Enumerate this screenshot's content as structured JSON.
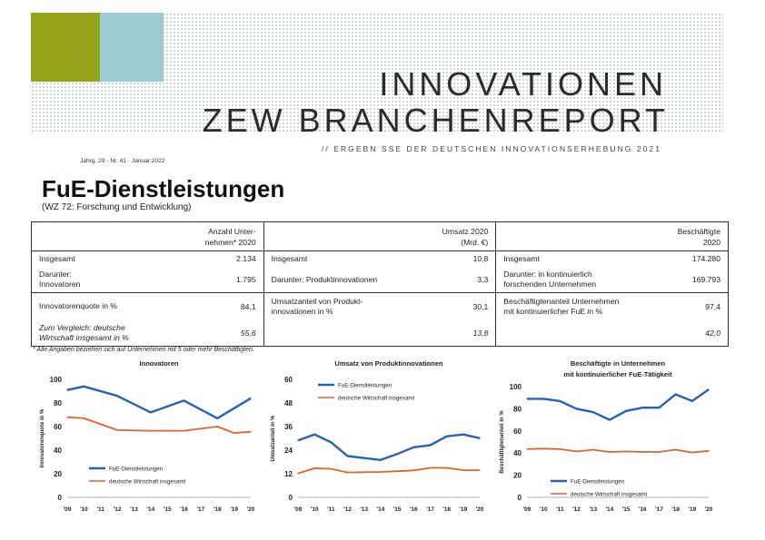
{
  "header": {
    "title_line1": "INNOVATIONEN",
    "title_line2": "ZEW BRANCHENREPORT",
    "subtitle": "// ERGEBN SSE DER DEUTSCHEN INNOVATIONSERHEBUNG 2021",
    "issue": "Jahrg. 29 · Nr. 41 · Januar 2022",
    "colors": {
      "green": "#94a317",
      "blue": "#9ecad2",
      "series_main": "#2563b0",
      "series_compare": "#e0622c"
    }
  },
  "report": {
    "title": "FuE-Dienstleistungen",
    "subtitle": "(WZ 72: Forschung und Entwicklung)"
  },
  "table": {
    "headers": [
      "Anzahl Unter-\nnehmen* 2020",
      "Umsatz 2020\n(Mrd. €)",
      "Beschäftigte\n2020"
    ],
    "rows": [
      [
        {
          "label": "Insgesamt",
          "value": "2.134"
        },
        {
          "label": "Insgesamt",
          "value": "10,8"
        },
        {
          "label": "Insgesamt",
          "value": "174.280"
        }
      ],
      [
        {
          "label": "Darunter:\nInnovatoren",
          "value": "1.795"
        },
        {
          "label": "Darunter: Produktinnovationen",
          "value": "3,3"
        },
        {
          "label": "Darunter: in kontinuierlich\nforschenden Unternehmen",
          "value": "169.793"
        }
      ],
      [
        {
          "label": "Innovatorenquote in %",
          "value": "84,1"
        },
        {
          "label": "Umsatzanteil von Produkt-\ninnovationen in %",
          "value": "30,1"
        },
        {
          "label": "Beschäftigtenanteil Unternehmen\nmit kontinuierlicher FuE in %",
          "value": "97,4"
        }
      ],
      [
        {
          "label": "Zum Vergleich: deutsche\nWirtschaft insgesamt in %",
          "value": "55,6"
        },
        {
          "label": "",
          "value": "13,8"
        },
        {
          "label": "",
          "value": "42,0"
        }
      ]
    ]
  },
  "footnote": "* Alle Angaben beziehen sich auf Unternehmen mit 5 oder mehr Beschäftigten.",
  "chart_data": [
    {
      "type": "line",
      "title": "Innovatoren",
      "title2": "",
      "ylabel": "Innovatorenquote in %",
      "ylim": [
        0,
        100
      ],
      "yticks": [
        0,
        20,
        40,
        60,
        80,
        100
      ],
      "x": [
        "'09",
        "'10",
        "'12",
        "'13",
        "'14",
        "'15",
        "'16",
        "'17",
        "'18",
        "'19",
        "'20"
      ],
      "xticks": [
        "'09",
        "'10",
        "'11",
        "'12",
        "'13",
        "'14",
        "'15",
        "'16",
        "'17",
        "'18",
        "'19",
        "'20"
      ],
      "legend_position": "bottom-left",
      "series": [
        {
          "name": "FuE-Dienstleistungen",
          "color": "#2563b0",
          "x": [
            2009,
            2010,
            2012,
            2014,
            2016,
            2018,
            2020
          ],
          "values": [
            91,
            94,
            86,
            72,
            82,
            67,
            84
          ]
        },
        {
          "name": "deutsche Wirtschaft insgesamt",
          "color": "#e0622c",
          "x": [
            2009,
            2010,
            2012,
            2014,
            2016,
            2018,
            2019,
            2020
          ],
          "values": [
            68,
            67,
            57,
            56.5,
            56.5,
            60,
            54.5,
            55.6
          ]
        }
      ]
    },
    {
      "type": "line",
      "title": "Umsatz von Produktinnovationen",
      "title2": "",
      "ylabel": "Umsatzanteil in %",
      "ylim": [
        0,
        60
      ],
      "yticks": [
        0,
        12,
        24,
        36,
        48,
        60
      ],
      "xticks": [
        "'09",
        "'10",
        "'11",
        "'12",
        "'13",
        "'14",
        "'15",
        "'16",
        "'17",
        "'18",
        "'19",
        "'20"
      ],
      "legend_position": "top-left",
      "series": [
        {
          "name": "FuE-Dienstleistungen",
          "color": "#2563b0",
          "x": [
            2009,
            2010,
            2011,
            2012,
            2013,
            2014,
            2015,
            2016,
            2017,
            2018,
            2019,
            2020
          ],
          "values": [
            29,
            32,
            28,
            21,
            20,
            19,
            22,
            25.5,
            26.5,
            31,
            32,
            30.1
          ]
        },
        {
          "name": "deutsche Wirtschaft insgesamt",
          "color": "#e0622c",
          "x": [
            2009,
            2010,
            2011,
            2012,
            2013,
            2014,
            2015,
            2016,
            2017,
            2018,
            2019,
            2020
          ],
          "values": [
            12.2,
            14.8,
            14.5,
            12.7,
            12.8,
            12.9,
            13.3,
            13.7,
            15,
            15,
            13.8,
            13.8
          ]
        }
      ]
    },
    {
      "type": "line",
      "title": "Beschäftigte in Unternehmen",
      "title2": "mit kontinuierlicher FuE-Tätigkeit",
      "ylabel": "Beschäftigtenanteil in %",
      "ylim": [
        0,
        100
      ],
      "yticks": [
        0,
        20,
        40,
        60,
        80,
        100
      ],
      "xticks": [
        "'09",
        "'10",
        "'11",
        "'12",
        "'13",
        "'14",
        "'15",
        "'16",
        "'17",
        "'18",
        "'19",
        "'20"
      ],
      "legend_position": "bottom-left",
      "series": [
        {
          "name": "FuE-Dienstleistungen",
          "color": "#2563b0",
          "x": [
            2009,
            2010,
            2011,
            2012,
            2013,
            2014,
            2015,
            2016,
            2017,
            2018,
            2019,
            2020
          ],
          "values": [
            89,
            89,
            87,
            80,
            77,
            70,
            78,
            81,
            81,
            93,
            87,
            97.4
          ]
        },
        {
          "name": "deutsche Wirtschaft insgesamt",
          "color": "#e0622c",
          "x": [
            2009,
            2010,
            2011,
            2012,
            2013,
            2014,
            2015,
            2016,
            2017,
            2018,
            2019,
            2020
          ],
          "values": [
            43.5,
            44,
            43.5,
            41.5,
            43,
            41,
            41.5,
            41,
            41,
            43,
            40.5,
            42
          ]
        }
      ]
    }
  ]
}
